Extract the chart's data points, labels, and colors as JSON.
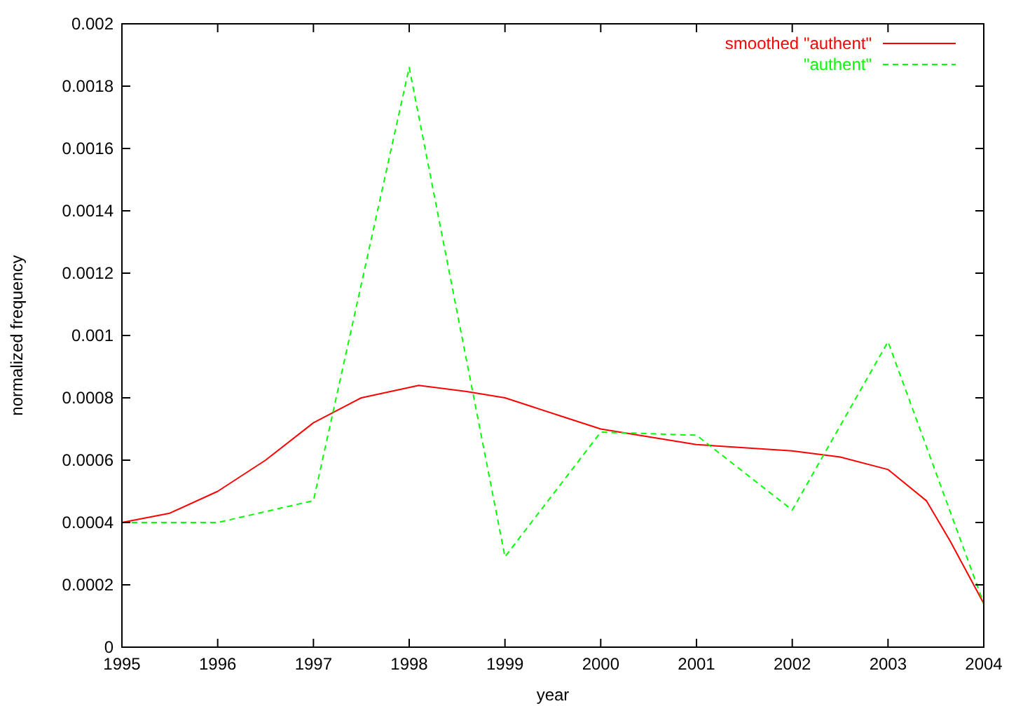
{
  "chart_data": {
    "type": "line",
    "xlabel": "year",
    "ylabel": "normalized frequency",
    "xlim": [
      1995,
      2004
    ],
    "xticks": [
      1995,
      1996,
      1997,
      1998,
      1999,
      2000,
      2001,
      2002,
      2003,
      2004
    ],
    "ylim": [
      0,
      0.002
    ],
    "yticks": [
      0,
      0.0002,
      0.0004,
      0.0006,
      0.0008,
      0.001,
      0.0012,
      0.0014,
      0.0016,
      0.0018,
      0.002
    ],
    "grid": false,
    "legend": "top right",
    "marker": "none",
    "series": [
      {
        "name": "smoothed \"authent\"",
        "color": "#ff0000",
        "line_style": "solid",
        "x": [
          1995,
          1995.5,
          1996,
          1996.5,
          1997,
          1997.5,
          1998.1,
          1998.6,
          1999,
          1999.6,
          2000,
          2001,
          2002,
          2002.5,
          2003,
          2003.4,
          2003.65,
          2004
        ],
        "values": [
          0.0004,
          0.00043,
          0.0005,
          0.0006,
          0.00072,
          0.0008,
          0.00084,
          0.00082,
          0.0008,
          0.00074,
          0.0007,
          0.00065,
          0.00063,
          0.00061,
          0.00057,
          0.00047,
          0.00034,
          0.00014
        ]
      },
      {
        "name": "\"authent\"",
        "color": "#00ff00",
        "line_style": "dashed",
        "x": [
          1995,
          1996,
          1997,
          1998,
          1999,
          2000,
          2001,
          2002,
          2003,
          2004
        ],
        "values": [
          0.0004,
          0.0004,
          0.00047,
          0.00186,
          0.00029,
          0.00069,
          0.00068,
          0.00044,
          0.00098,
          0.00014
        ]
      }
    ]
  }
}
